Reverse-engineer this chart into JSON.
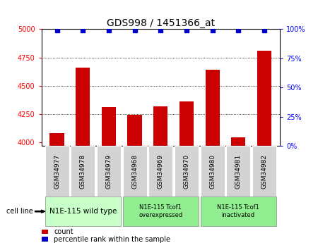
{
  "title": "GDS998 / 1451366_at",
  "samples": [
    "GSM34977",
    "GSM34978",
    "GSM34979",
    "GSM34968",
    "GSM34969",
    "GSM34970",
    "GSM34980",
    "GSM34981",
    "GSM34982"
  ],
  "bar_values": [
    4080,
    4660,
    4310,
    4245,
    4320,
    4360,
    4640,
    4045,
    4810
  ],
  "percentile_values": [
    99,
    99,
    99,
    99,
    99,
    99,
    99,
    99,
    99
  ],
  "bar_color": "#cc0000",
  "dot_color": "#0000cc",
  "ylim_left": [
    3970,
    5000
  ],
  "ylim_right": [
    0,
    100
  ],
  "yticks_left": [
    4000,
    4250,
    4500,
    4750,
    5000
  ],
  "yticks_right": [
    0,
    25,
    50,
    75,
    100
  ],
  "group_colors": [
    "#c8ffc8",
    "#90ee90",
    "#90ee90"
  ],
  "group_labels": [
    "N1E-115 wild type",
    "N1E-115 Tcof1\noverexpressed",
    "N1E-115 Tcof1\ninactivated"
  ],
  "group_ranges": [
    [
      0,
      3
    ],
    [
      3,
      6
    ],
    [
      6,
      9
    ]
  ],
  "cell_line_label": "cell line",
  "background_color": "#ffffff",
  "tick_bg_color": "#d3d3d3",
  "title_fontsize": 10,
  "tick_fontsize": 7,
  "group_label_fontsize_small": 6,
  "group_label_fontsize_large": 7.5
}
